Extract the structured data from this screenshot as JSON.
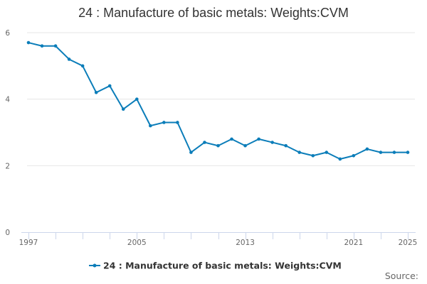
{
  "chart_data": {
    "type": "line",
    "title": "24 : Manufacture of basic metals: Weights:CVM",
    "xlabel": "",
    "ylabel": "",
    "x": [
      1997,
      1998,
      1999,
      2000,
      2001,
      2002,
      2003,
      2004,
      2005,
      2006,
      2007,
      2008,
      2009,
      2010,
      2011,
      2012,
      2013,
      2014,
      2015,
      2016,
      2017,
      2018,
      2019,
      2020,
      2021,
      2022,
      2023,
      2024,
      2025
    ],
    "series": [
      {
        "name": "24 : Manufacture of basic metals: Weights:CVM",
        "values": [
          5.7,
          5.6,
          5.6,
          5.2,
          5.0,
          4.2,
          4.4,
          3.7,
          4.0,
          3.2,
          3.3,
          3.3,
          2.4,
          2.7,
          2.6,
          2.8,
          2.6,
          2.8,
          2.7,
          2.6,
          2.4,
          2.3,
          2.4,
          2.2,
          2.3,
          2.5,
          2.4,
          2.4,
          2.4
        ],
        "color": "#0b7db9"
      }
    ],
    "ylim": [
      0,
      6
    ],
    "yticks": [
      0,
      2,
      4,
      6
    ],
    "xlim": [
      1997,
      2025
    ],
    "xtick_labels": [
      "1997",
      "2005",
      "2013",
      "2021",
      "2025"
    ],
    "grid": true,
    "legend_position": "bottom-center",
    "source_label": "Source:"
  }
}
